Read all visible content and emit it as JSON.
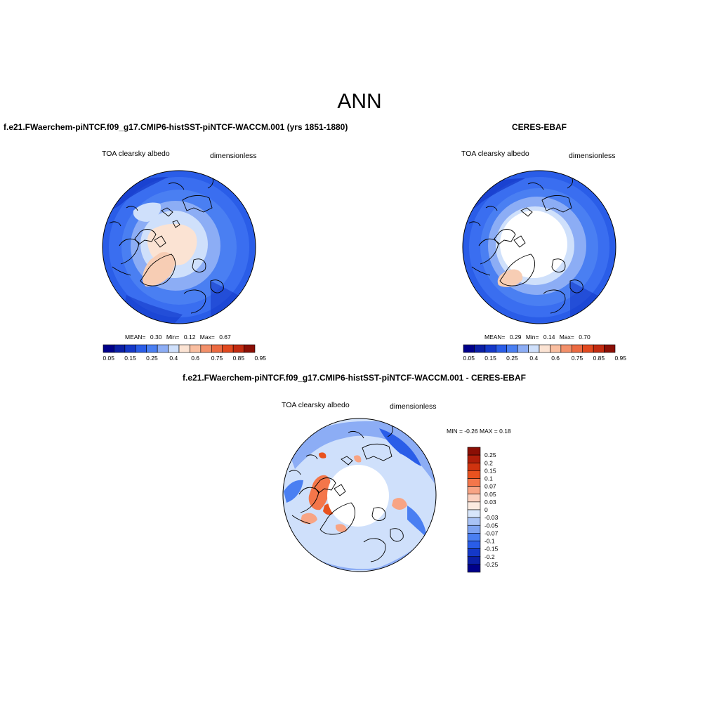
{
  "header": {
    "title": "ANN"
  },
  "panels": [
    {
      "title": "f.e21.FWaerchem-piNTCF.f09_g17.CMIP6-histSST-piNTCF-WACCM.001 (yrs 1851-1880)",
      "variable": "TOA clearsky albedo",
      "units": "dimensionless",
      "stats": {
        "mean_label": "MEAN=",
        "mean": "0.30",
        "min_label": "Min=",
        "min": "0.12",
        "max_label": "Max=",
        "max": "0.67"
      },
      "colorbar_labels": [
        "0.05",
        "0.15",
        "0.25",
        "0.4",
        "0.6",
        "0.75",
        "0.85",
        "0.95"
      ]
    },
    {
      "title": "CERES-EBAF",
      "variable": "TOA clearsky albedo",
      "units": "dimensionless",
      "stats": {
        "mean_label": "MEAN=",
        "mean": "0.29",
        "min_label": "Min=",
        "min": "0.14",
        "max_label": "Max=",
        "max": "0.70"
      },
      "colorbar_labels": [
        "0.05",
        "0.15",
        "0.25",
        "0.4",
        "0.6",
        "0.75",
        "0.85",
        "0.95"
      ]
    },
    {
      "title": "f.e21.FWaerchem-piNTCF.f09_g17.CMIP6-histSST-piNTCF-WACCM.001 - CERES-EBAF",
      "variable": "TOA clearsky albedo",
      "units": "dimensionless",
      "stats_text": "MIN =  -0.26 MAX =   0.18",
      "colorbar_labels": [
        "0.25",
        "0.2",
        "0.15",
        "0.1",
        "0.07",
        "0.05",
        "0.03",
        "0",
        "-0.03",
        "-0.05",
        "-0.07",
        "-0.1",
        "-0.15",
        "-0.2",
        "-0.25"
      ]
    }
  ],
  "colors": {
    "abs_scale": [
      "#00008a",
      "#0b1fa6",
      "#1438c8",
      "#2a5de8",
      "#4a7ff2",
      "#8cadf5",
      "#cfe0fb",
      "#fbe3d3",
      "#f9bea0",
      "#f3906a",
      "#ec6a41",
      "#e2491f",
      "#c22b10",
      "#8b0f05"
    ],
    "diff_scale": [
      "#8b0f05",
      "#b01e0a",
      "#d0330f",
      "#e8521f",
      "#f4764a",
      "#f8a484",
      "#fbd1bf",
      "#fbeae0",
      "#d8e6fb",
      "#a9c3f6",
      "#7ea3f1",
      "#4a7ff2",
      "#2a5de8",
      "#1438c8",
      "#0b1fa6",
      "#00008a"
    ]
  }
}
